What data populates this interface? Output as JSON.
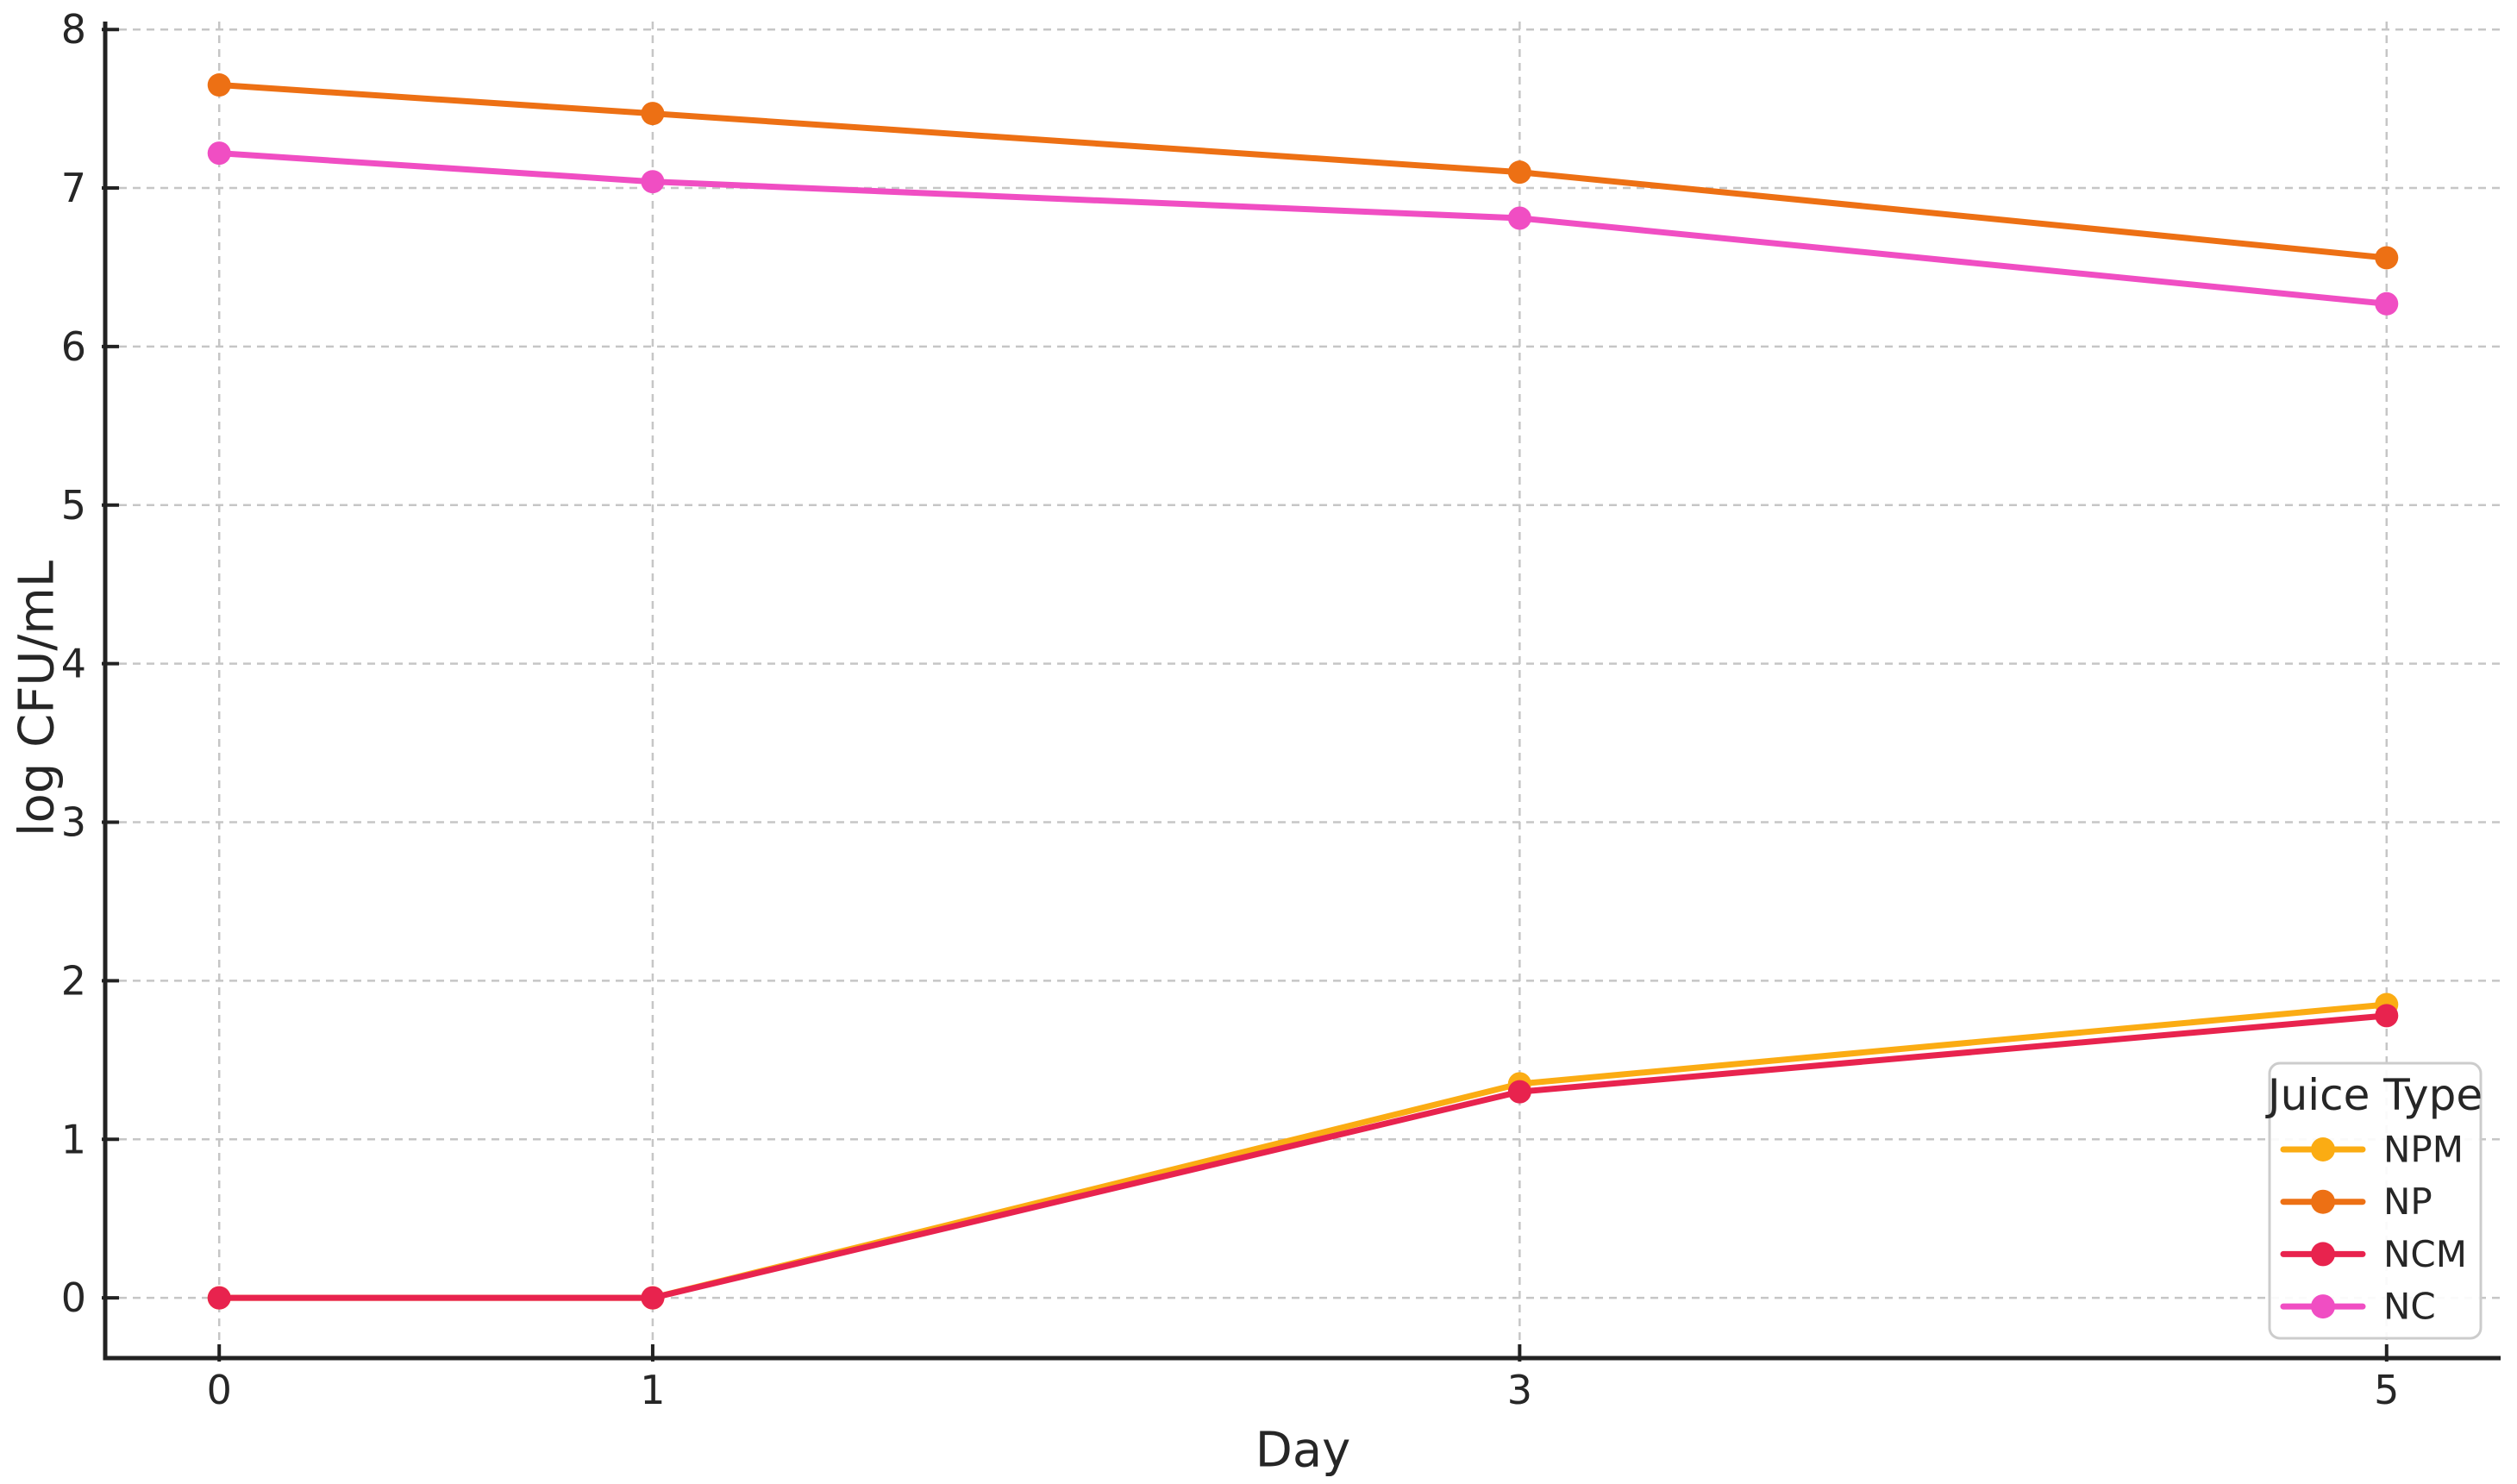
{
  "chart_data": {
    "type": "line",
    "title": "",
    "xlabel": "Day",
    "ylabel": "log CFU/mL",
    "x": [
      0,
      1,
      3,
      5
    ],
    "xticks": [
      "0",
      "1",
      "3",
      "5"
    ],
    "yticks": [
      0,
      1,
      2,
      3,
      4,
      5,
      6,
      7,
      8
    ],
    "xlim": [
      -0.263,
      5.263
    ],
    "ylim": [
      -0.38,
      8.05
    ],
    "grid": "dashed, both axes, at tick positions only",
    "marker": "o",
    "legend": {
      "title": "Juice Type",
      "position": "lower right"
    },
    "series": [
      {
        "name": "NPM",
        "color": "#FBAC13",
        "values": [
          0.0,
          0.0,
          1.35,
          1.85
        ]
      },
      {
        "name": "NP",
        "color": "#ED7014",
        "values": [
          7.65,
          7.47,
          7.1,
          6.56
        ]
      },
      {
        "name": "NCM",
        "color": "#E8234E",
        "values": [
          0.0,
          0.0,
          1.3,
          1.78
        ]
      },
      {
        "name": "NC",
        "color": "#F04EC3",
        "values": [
          7.22,
          7.04,
          6.81,
          6.27
        ]
      }
    ],
    "colors": {
      "spine": "#222222",
      "grid": "#c6c6c6",
      "text": "#262626",
      "legend_border": "#cccccc",
      "background": "#ffffff"
    }
  }
}
